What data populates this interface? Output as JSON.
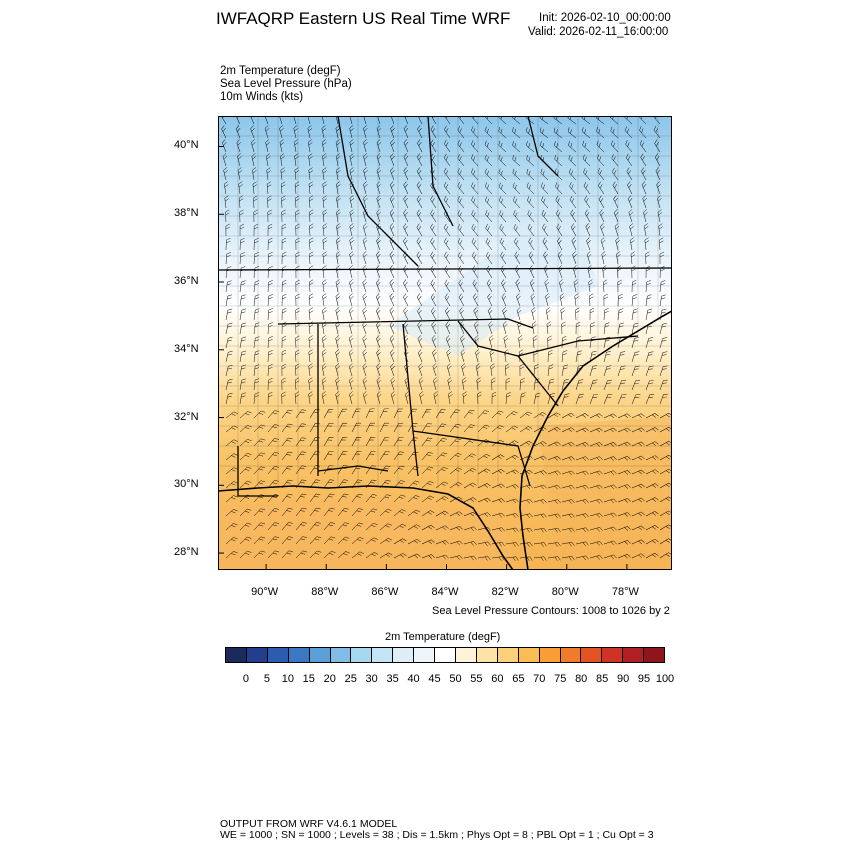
{
  "header": {
    "title": "IWFAQRP Eastern US Real Time WRF",
    "init": "Init: 2026-02-10_00:00:00",
    "valid": "Valid: 2026-02-11_16:00:00"
  },
  "fields": {
    "temperature": "2m Temperature   (degF)",
    "pressure": "Sea Level Pressure   (hPa)",
    "winds": "10m Winds   (kts)"
  },
  "map": {
    "lat_labels": [
      "40°N",
      "38°N",
      "36°N",
      "34°N",
      "32°N",
      "30°N",
      "28°N"
    ],
    "lon_labels": [
      "90°W",
      "88°W",
      "86°W",
      "84°W",
      "82°W",
      "80°W",
      "78°W"
    ],
    "lat_values": [
      40,
      38,
      36,
      34,
      32,
      30,
      28
    ],
    "lon_values": [
      -90,
      -88,
      -86,
      -84,
      -82,
      -80,
      -78
    ],
    "lat_range": [
      27.5,
      40.9
    ],
    "lon_range": [
      -91.6,
      -76.5
    ]
  },
  "slp_note": "Sea Level Pressure Contours: 1008 to 1026 by 2",
  "colorbar": {
    "title": "2m Temperature  (degF)",
    "ticks": [
      "0",
      "5",
      "10",
      "15",
      "20",
      "25",
      "30",
      "35",
      "40",
      "45",
      "50",
      "55",
      "60",
      "65",
      "70",
      "75",
      "80",
      "85",
      "90",
      "95",
      "100"
    ],
    "colors": [
      "#1b2a5c",
      "#213f8c",
      "#2b5cb0",
      "#3a78c4",
      "#5a9fd6",
      "#7fbde6",
      "#a6d8f2",
      "#c3e4f3",
      "#ddeef7",
      "#eff6fb",
      "#ffffff",
      "#fff3d8",
      "#ffe2a6",
      "#fdd17b",
      "#fbbb55",
      "#f99d34",
      "#f07b28",
      "#e35222",
      "#cf3325",
      "#b21e23",
      "#8e1519"
    ]
  },
  "footer": {
    "line1": "OUTPUT FROM WRF V4.6.1 MODEL",
    "line2": "WE = 1000 ; SN = 1000 ; Levels = 38 ; Dis = 1.5km ; Phys Opt = 8 ; PBL Opt = 1 ; Cu Opt = 3"
  }
}
